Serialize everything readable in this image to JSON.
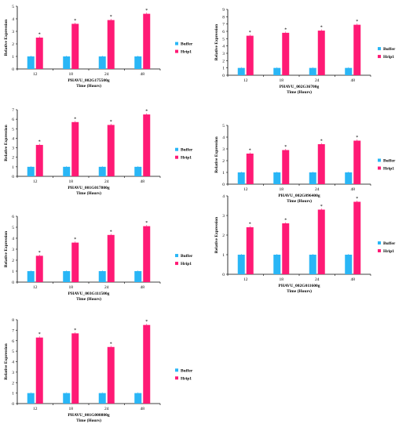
{
  "colors": {
    "buffer": "#29B6F6",
    "hrip1": "#FF1A75",
    "axis": "#000000"
  },
  "chart_data": [
    {
      "type": "bar",
      "categories": [
        "12",
        "18",
        "24",
        "48"
      ],
      "series": [
        {
          "name": "Buffer",
          "values": [
            1,
            1,
            1,
            1
          ]
        },
        {
          "name": "Hrip1",
          "values": [
            2.5,
            3.6,
            3.9,
            4.4
          ]
        }
      ],
      "significance": [
        "*",
        "*",
        "*",
        "*"
      ],
      "ylabel": "Relative Expression",
      "gene_label": "PHAVU_002G175500g",
      "xlabel": "Time (Hours)",
      "ylim": [
        0,
        5
      ],
      "ytick_step": 1,
      "legend": "right",
      "grid": false
    },
    {
      "type": "bar",
      "categories": [
        "12",
        "18",
        "24",
        "48"
      ],
      "series": [
        {
          "name": "Buffer",
          "values": [
            1,
            1,
            1,
            1
          ]
        },
        {
          "name": "Hrip1",
          "values": [
            5.4,
            5.8,
            6.1,
            6.9
          ]
        }
      ],
      "significance": [
        "*",
        "*",
        "*",
        "*"
      ],
      "ylabel": "Relative Expression",
      "gene_label": "PHAVU_002G36700g",
      "xlabel": "Time (Hours)",
      "ylim": [
        0,
        9
      ],
      "ytick_step": 1,
      "legend": "right",
      "grid": false
    },
    {
      "type": "bar",
      "categories": [
        "12",
        "18",
        "24",
        "48"
      ],
      "series": [
        {
          "name": "Buffer",
          "values": [
            1,
            1,
            1,
            1
          ]
        },
        {
          "name": "Hrip1",
          "values": [
            3.3,
            5.7,
            5.4,
            6.5
          ]
        }
      ],
      "significance": [
        "*",
        "*",
        "*",
        "*"
      ],
      "ylabel": "Relative Expression",
      "gene_label": "PHAVU_001G017800g",
      "xlabel": "Time (Hours)",
      "ylim": [
        0,
        7
      ],
      "ytick_step": 1,
      "legend": "right",
      "grid": false
    },
    {
      "type": "bar",
      "categories": [
        "12",
        "18",
        "24",
        "48"
      ],
      "series": [
        {
          "name": "Buffer",
          "values": [
            1,
            1,
            1,
            1
          ]
        },
        {
          "name": "Hrip1",
          "values": [
            2.6,
            2.9,
            3.4,
            3.7
          ]
        }
      ],
      "significance": [
        "*",
        "*",
        "*",
        "*"
      ],
      "ylabel": "Relative Expression",
      "gene_label": "PHAVU_002G096400g",
      "xlabel": "Time (Hours)",
      "ylim": [
        0,
        5
      ],
      "ytick_step": 1,
      "legend": "right",
      "grid": false
    },
    {
      "type": "bar",
      "categories": [
        "12",
        "18",
        "24",
        "48"
      ],
      "series": [
        {
          "name": "Buffer",
          "values": [
            1,
            1,
            1,
            1
          ]
        },
        {
          "name": "Hrip1",
          "values": [
            2.4,
            3.6,
            4.3,
            5.1
          ]
        }
      ],
      "significance": [
        "*",
        "*",
        "*",
        "*"
      ],
      "ylabel": "Relative Expression",
      "gene_label": "PHAVU_003G111500g",
      "xlabel": "Time (Hours)",
      "ylim": [
        0,
        6
      ],
      "ytick_step": 1,
      "legend": "right",
      "grid": false
    },
    {
      "type": "bar",
      "categories": [
        "12",
        "18",
        "24",
        "48"
      ],
      "series": [
        {
          "name": "Buffer",
          "values": [
            1,
            1,
            1,
            1
          ]
        },
        {
          "name": "Hrip1",
          "values": [
            2.4,
            2.6,
            3.3,
            3.7
          ]
        }
      ],
      "significance": [
        "*",
        "*",
        "*",
        "*"
      ],
      "ylabel": "Relative Expression",
      "gene_label": "PHAVU_002G011600g",
      "xlabel": "Time (Hours)",
      "ylim": [
        0,
        4
      ],
      "ytick_step": 1,
      "legend": "right",
      "grid": false
    },
    {
      "type": "bar",
      "categories": [
        "12",
        "18",
        "24",
        "48"
      ],
      "series": [
        {
          "name": "Buffer",
          "values": [
            1,
            1,
            1,
            1
          ]
        },
        {
          "name": "Hrip1",
          "values": [
            6.3,
            6.7,
            5.4,
            7.5
          ]
        }
      ],
      "significance": [
        "*",
        "*",
        "*",
        "*"
      ],
      "ylabel": "Relative Expression",
      "gene_label": "PHAVU_001G000800g",
      "xlabel": "Time (Hours)",
      "ylim": [
        0,
        8
      ],
      "ytick_step": 1,
      "legend": "right",
      "grid": false
    }
  ]
}
